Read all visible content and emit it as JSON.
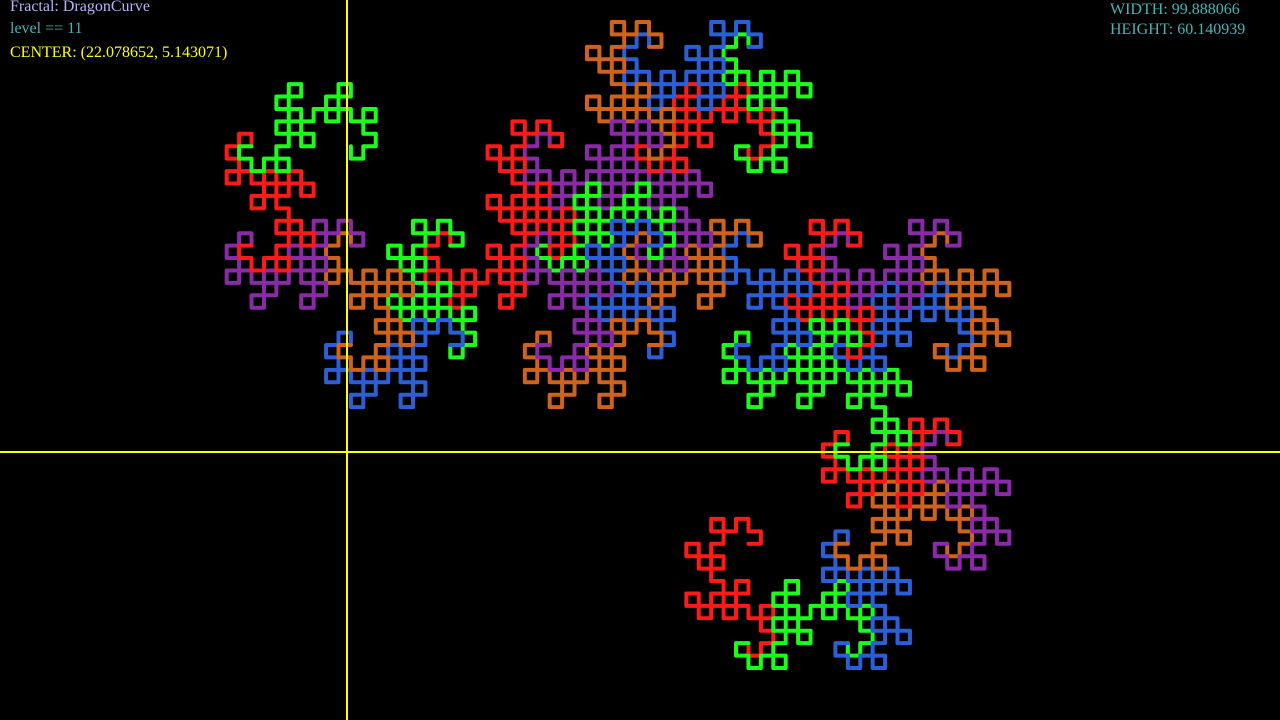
{
  "hud": {
    "fractal_label": "Fractal: DragonCurve",
    "level_label": "level == 11",
    "center_label": "CENTER: (22.078652, 5.143071)",
    "width_label": "WIDTH: 99.888066",
    "height_label": "HEIGHT: 60.140939"
  },
  "fractal": {
    "name": "DragonCurve",
    "level": 11,
    "center": [
      22.078652,
      5.143071
    ],
    "width": 99.888066,
    "height": 60.140939
  },
  "colors": {
    "background": "#000000",
    "axes": "#ffff00",
    "fractal_label": "#b4b4ff",
    "level_label": "#3fb7b7",
    "center_label": "#ffff00",
    "dimension_labels": "#3fb7b7",
    "segment_palette": [
      "#ff1a1a",
      "#1aff1a",
      "#2a5fd8",
      "#d0621a",
      "#8a2aa8"
    ]
  }
}
